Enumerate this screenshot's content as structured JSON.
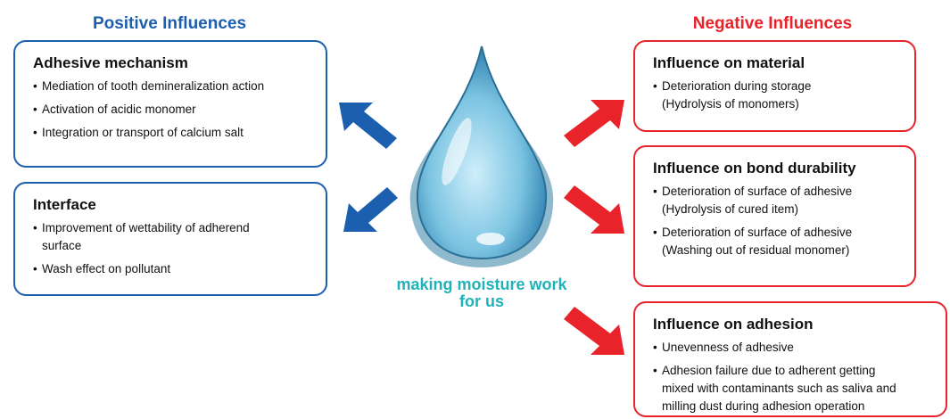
{
  "positive": {
    "title": "Positive Influences",
    "boxes": [
      {
        "title": "Adhesive mechanism",
        "items": [
          [
            "Mediation of tooth demineralization action"
          ],
          [
            "Activation of acidic monomer"
          ],
          [
            "Integration or transport of calcium salt"
          ]
        ]
      },
      {
        "title": "Interface",
        "items": [
          [
            "Improvement of wettability of adherend",
            "surface"
          ],
          [
            "Wash effect on pollutant"
          ]
        ]
      }
    ]
  },
  "negative": {
    "title": "Negative Influences",
    "boxes": [
      {
        "title": "Influence on material",
        "items": [
          [
            "Deterioration during storage",
            "(Hydrolysis of monomers)"
          ]
        ]
      },
      {
        "title": "Influence on bond durability",
        "items": [
          [
            "Deterioration of surface of adhesive",
            "(Hydrolysis of cured item)"
          ],
          [
            "Deterioration of surface of adhesive",
            "(Washing out of residual monomer)"
          ]
        ]
      },
      {
        "title": "Influence on adhesion",
        "items": [
          [
            "Unevenness of adhesive"
          ],
          [
            "Adhesion failure due to adherent getting",
            "mixed with contaminants such as saliva and",
            "milling dust during adhesion operation"
          ]
        ]
      }
    ]
  },
  "center": {
    "caption": [
      "making moisture work",
      "for us"
    ]
  }
}
